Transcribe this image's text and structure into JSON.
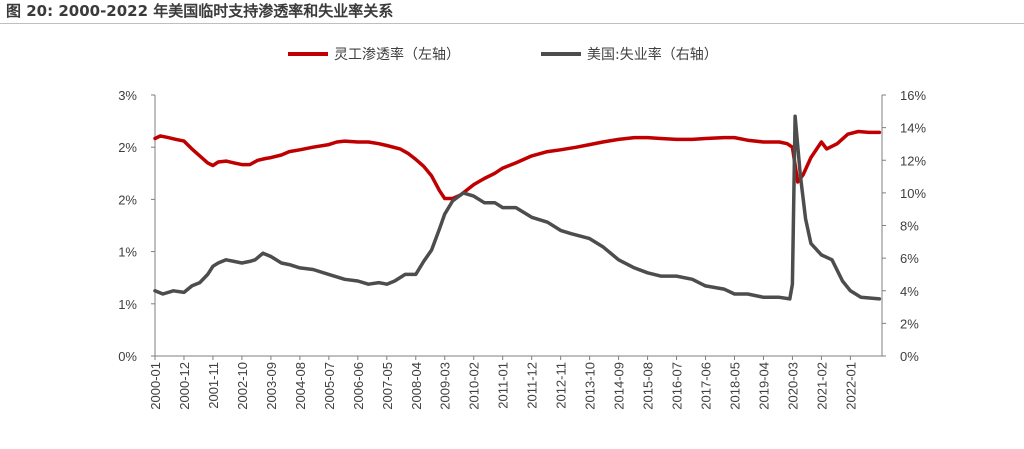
{
  "figure": {
    "title": "图 20: 2000-2022 年美国临时支持渗透率和失业率关系"
  },
  "chart_data": {
    "type": "line",
    "legend_position": "top-center",
    "grid": false,
    "x_tick_labels": [
      "2000-01",
      "2000-12",
      "2001-11",
      "2002-10",
      "2003-09",
      "2004-08",
      "2005-07",
      "2006-06",
      "2007-05",
      "2008-04",
      "2009-03",
      "2010-02",
      "2011-01",
      "2011-12",
      "2012-11",
      "2013-10",
      "2014-09",
      "2015-08",
      "2016-07",
      "2017-06",
      "2018-05",
      "2019-04",
      "2020-03",
      "2021-02",
      "2022-01"
    ],
    "x_range": [
      "2000-01",
      "2022-12"
    ],
    "y_left": {
      "ticks": [
        "3%",
        "2%",
        "2%",
        "1%",
        "1%",
        "0%"
      ],
      "range": [
        0,
        3
      ]
    },
    "y_right": {
      "ticks": [
        "16%",
        "14%",
        "12%",
        "10%",
        "8%",
        "6%",
        "4%",
        "2%",
        "0%"
      ],
      "range": [
        0,
        16
      ]
    },
    "series": [
      {
        "name": "灵工渗透率（左轴）",
        "axis": "left",
        "color": "#c00000",
        "points": [
          [
            "2000-01",
            2.5
          ],
          [
            "2000-03",
            2.53
          ],
          [
            "2000-06",
            2.51
          ],
          [
            "2000-09",
            2.49
          ],
          [
            "2000-12",
            2.47
          ],
          [
            "2001-03",
            2.38
          ],
          [
            "2001-06",
            2.3
          ],
          [
            "2001-09",
            2.22
          ],
          [
            "2001-11",
            2.19
          ],
          [
            "2002-01",
            2.23
          ],
          [
            "2002-04",
            2.24
          ],
          [
            "2002-07",
            2.22
          ],
          [
            "2002-10",
            2.2
          ],
          [
            "2003-01",
            2.2
          ],
          [
            "2003-04",
            2.25
          ],
          [
            "2003-07",
            2.27
          ],
          [
            "2003-09",
            2.28
          ],
          [
            "2004-01",
            2.31
          ],
          [
            "2004-04",
            2.35
          ],
          [
            "2004-08",
            2.37
          ],
          [
            "2005-01",
            2.4
          ],
          [
            "2005-07",
            2.43
          ],
          [
            "2005-10",
            2.46
          ],
          [
            "2006-01",
            2.47
          ],
          [
            "2006-06",
            2.46
          ],
          [
            "2006-10",
            2.46
          ],
          [
            "2007-02",
            2.44
          ],
          [
            "2007-05",
            2.42
          ],
          [
            "2007-10",
            2.38
          ],
          [
            "2008-01",
            2.33
          ],
          [
            "2008-04",
            2.26
          ],
          [
            "2008-07",
            2.18
          ],
          [
            "2008-10",
            2.07
          ],
          [
            "2009-01",
            1.9
          ],
          [
            "2009-03",
            1.81
          ],
          [
            "2009-06",
            1.81
          ],
          [
            "2009-09",
            1.85
          ],
          [
            "2010-02",
            1.97
          ],
          [
            "2010-06",
            2.04
          ],
          [
            "2010-10",
            2.1
          ],
          [
            "2011-01",
            2.16
          ],
          [
            "2011-06",
            2.22
          ],
          [
            "2011-12",
            2.3
          ],
          [
            "2012-06",
            2.35
          ],
          [
            "2012-11",
            2.37
          ],
          [
            "2013-05",
            2.4
          ],
          [
            "2013-10",
            2.43
          ],
          [
            "2014-03",
            2.46
          ],
          [
            "2014-09",
            2.49
          ],
          [
            "2015-03",
            2.51
          ],
          [
            "2015-08",
            2.51
          ],
          [
            "2016-01",
            2.5
          ],
          [
            "2016-07",
            2.49
          ],
          [
            "2017-01",
            2.49
          ],
          [
            "2017-06",
            2.5
          ],
          [
            "2018-01",
            2.51
          ],
          [
            "2018-05",
            2.51
          ],
          [
            "2018-10",
            2.48
          ],
          [
            "2019-04",
            2.46
          ],
          [
            "2019-10",
            2.46
          ],
          [
            "2020-01",
            2.44
          ],
          [
            "2020-03",
            2.4
          ],
          [
            "2020-05",
            2.0
          ],
          [
            "2020-07",
            2.08
          ],
          [
            "2020-10",
            2.28
          ],
          [
            "2021-02",
            2.46
          ],
          [
            "2021-04",
            2.38
          ],
          [
            "2021-08",
            2.44
          ],
          [
            "2021-12",
            2.55
          ],
          [
            "2022-04",
            2.58
          ],
          [
            "2022-08",
            2.57
          ],
          [
            "2022-12",
            2.57
          ]
        ]
      },
      {
        "name": "美国:失业率（右轴）",
        "axis": "right",
        "color": "#4d4d4d",
        "points": [
          [
            "2000-01",
            4.0
          ],
          [
            "2000-04",
            3.8
          ],
          [
            "2000-08",
            4.0
          ],
          [
            "2000-12",
            3.9
          ],
          [
            "2001-03",
            4.3
          ],
          [
            "2001-06",
            4.5
          ],
          [
            "2001-09",
            5.0
          ],
          [
            "2001-11",
            5.5
          ],
          [
            "2002-01",
            5.7
          ],
          [
            "2002-04",
            5.9
          ],
          [
            "2002-07",
            5.8
          ],
          [
            "2002-10",
            5.7
          ],
          [
            "2003-01",
            5.8
          ],
          [
            "2003-03",
            5.9
          ],
          [
            "2003-06",
            6.3
          ],
          [
            "2003-09",
            6.1
          ],
          [
            "2004-01",
            5.7
          ],
          [
            "2004-04",
            5.6
          ],
          [
            "2004-08",
            5.4
          ],
          [
            "2005-01",
            5.3
          ],
          [
            "2005-07",
            5.0
          ],
          [
            "2006-01",
            4.7
          ],
          [
            "2006-06",
            4.6
          ],
          [
            "2006-10",
            4.4
          ],
          [
            "2007-02",
            4.5
          ],
          [
            "2007-05",
            4.4
          ],
          [
            "2007-08",
            4.6
          ],
          [
            "2007-12",
            5.0
          ],
          [
            "2008-04",
            5.0
          ],
          [
            "2008-07",
            5.8
          ],
          [
            "2008-10",
            6.5
          ],
          [
            "2009-01",
            7.8
          ],
          [
            "2009-03",
            8.7
          ],
          [
            "2009-06",
            9.5
          ],
          [
            "2009-10",
            10.0
          ],
          [
            "2010-02",
            9.8
          ],
          [
            "2010-06",
            9.4
          ],
          [
            "2010-10",
            9.4
          ],
          [
            "2011-01",
            9.1
          ],
          [
            "2011-06",
            9.1
          ],
          [
            "2011-12",
            8.5
          ],
          [
            "2012-06",
            8.2
          ],
          [
            "2012-11",
            7.7
          ],
          [
            "2013-03",
            7.5
          ],
          [
            "2013-10",
            7.2
          ],
          [
            "2014-03",
            6.7
          ],
          [
            "2014-09",
            5.9
          ],
          [
            "2015-03",
            5.4
          ],
          [
            "2015-08",
            5.1
          ],
          [
            "2016-01",
            4.9
          ],
          [
            "2016-07",
            4.9
          ],
          [
            "2017-01",
            4.7
          ],
          [
            "2017-06",
            4.3
          ],
          [
            "2018-01",
            4.1
          ],
          [
            "2018-05",
            3.8
          ],
          [
            "2018-10",
            3.8
          ],
          [
            "2019-04",
            3.6
          ],
          [
            "2019-10",
            3.6
          ],
          [
            "2020-02",
            3.5
          ],
          [
            "2020-03",
            4.4
          ],
          [
            "2020-04",
            14.7
          ],
          [
            "2020-06",
            11.1
          ],
          [
            "2020-08",
            8.4
          ],
          [
            "2020-10",
            6.9
          ],
          [
            "2021-02",
            6.2
          ],
          [
            "2021-06",
            5.9
          ],
          [
            "2021-10",
            4.6
          ],
          [
            "2022-01",
            4.0
          ],
          [
            "2022-05",
            3.6
          ],
          [
            "2022-12",
            3.5
          ]
        ]
      }
    ]
  }
}
